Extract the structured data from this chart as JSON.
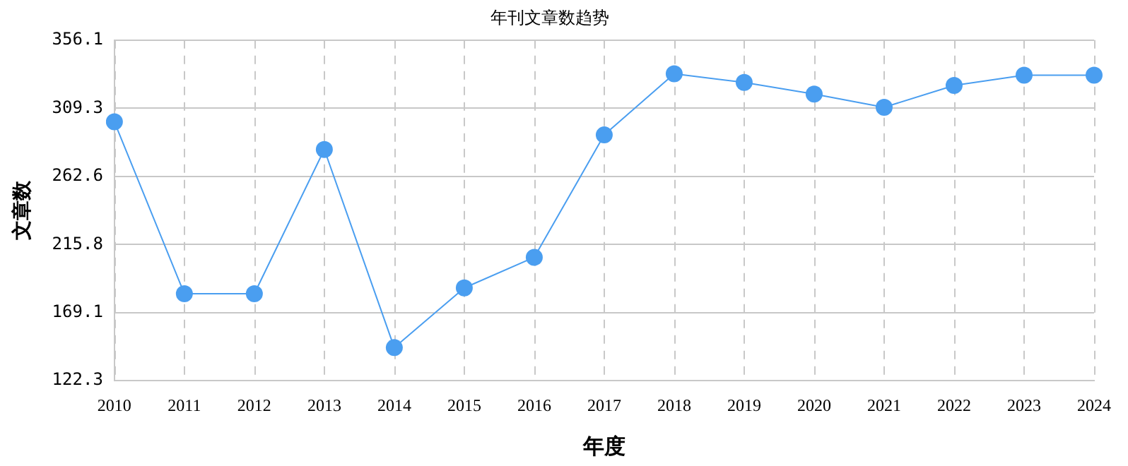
{
  "chart_data": {
    "type": "line",
    "title": "年刊文章数趋势",
    "xlabel": "年度",
    "ylabel": "文章数",
    "categories": [
      "2010",
      "2011",
      "2012",
      "2013",
      "2014",
      "2015",
      "2016",
      "2017",
      "2018",
      "2019",
      "2020",
      "2021",
      "2022",
      "2023",
      "2024"
    ],
    "series": [
      {
        "color": "#4a9ef0",
        "values": [
          300,
          182,
          182,
          281,
          145,
          186,
          207,
          291,
          333,
          327,
          319,
          310,
          325,
          332,
          332
        ]
      }
    ],
    "ylim": [
      122.3,
      356.1
    ],
    "yticks": [
      122.3,
      169.1,
      215.8,
      262.6,
      309.3,
      356.1
    ],
    "grid": true,
    "marker": "circle",
    "line_style": "solid",
    "legend": false
  }
}
